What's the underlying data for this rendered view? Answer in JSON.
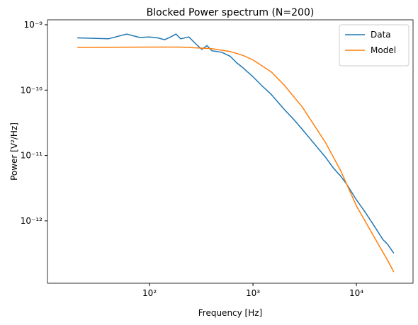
{
  "chart_data": {
    "type": "line",
    "title": "Blocked Power spectrum (N=200)",
    "xlabel": "Frequency [Hz]",
    "ylabel": "Power [V²/Hz]",
    "xscale": "log",
    "yscale": "log",
    "xlim": [
      10.3,
      35300
    ],
    "ylim": [
      1.11e-13,
      1.19e-09
    ],
    "xticks": [
      {
        "value": 100,
        "label": "10²"
      },
      {
        "value": 1000,
        "label": "10³"
      },
      {
        "value": 10000,
        "label": "10⁴"
      }
    ],
    "yticks": [
      {
        "value": 1e-12,
        "label": "10⁻¹²"
      },
      {
        "value": 1e-11,
        "label": "10⁻¹¹"
      },
      {
        "value": 1e-10,
        "label": "10⁻¹⁰"
      },
      {
        "value": 1e-09,
        "label": "10⁻⁹"
      }
    ],
    "legend": "upper right",
    "series": [
      {
        "name": "Data",
        "color": "#1f77b4",
        "x": [
          20,
          40,
          60,
          80,
          100,
          120,
          140,
          160,
          180,
          200,
          240,
          280,
          320,
          360,
          400,
          500,
          600,
          700,
          800,
          1000,
          1200,
          1500,
          2000,
          2500,
          3000,
          4000,
          5000,
          6000,
          7000,
          8000,
          10000,
          12000,
          15000,
          18000,
          20000,
          23000
        ],
        "values": [
          6.3e-10,
          6.1e-10,
          7.2e-10,
          6.4e-10,
          6.5e-10,
          6.3e-10,
          5.9e-10,
          6.5e-10,
          7.2e-10,
          6.1e-10,
          6.5e-10,
          5.1e-10,
          4.2e-10,
          4.8e-10,
          4e-10,
          3.8e-10,
          3.3e-10,
          2.6e-10,
          2.2e-10,
          1.6e-10,
          1.2e-10,
          8.6e-11,
          5.1e-11,
          3.5e-11,
          2.5e-11,
          1.45e-11,
          9.5e-12,
          6.4e-12,
          4.9e-12,
          3.7e-12,
          2.1e-12,
          1.4e-12,
          8.2e-13,
          5.2e-13,
          4.4e-13,
          3.2e-13
        ]
      },
      {
        "name": "Model",
        "color": "#ff7f0e",
        "x": [
          20,
          100,
          200,
          400,
          600,
          800,
          1000,
          1500,
          2000,
          3000,
          5000,
          7000,
          10000,
          15000,
          20000,
          23000
        ],
        "values": [
          4.5e-10,
          4.55e-10,
          4.55e-10,
          4.3e-10,
          3.9e-10,
          3.4e-10,
          2.9e-10,
          1.9e-10,
          1.2e-10,
          5.5e-11,
          1.6e-11,
          6e-12,
          1.7e-12,
          5.5e-13,
          2.5e-13,
          1.65e-13
        ]
      }
    ]
  }
}
